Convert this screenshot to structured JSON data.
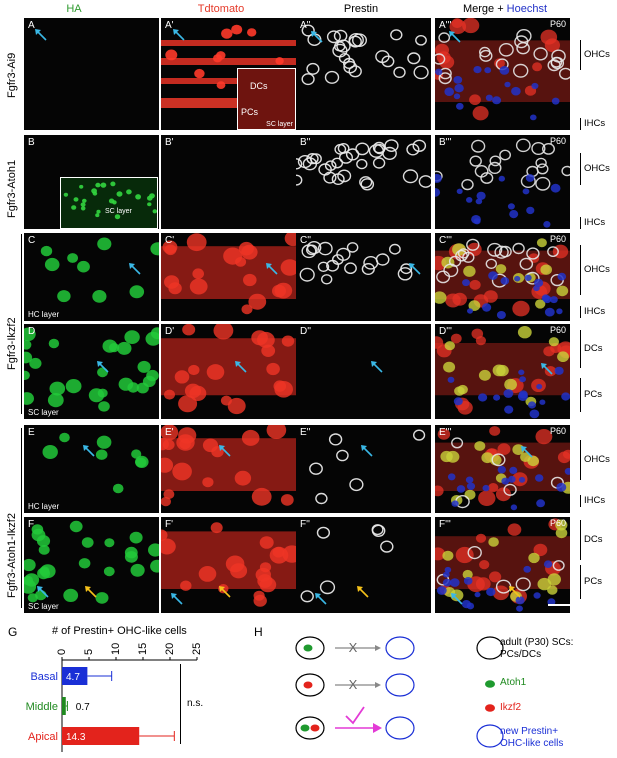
{
  "columns": {
    "ha": "HA",
    "tdtomato": "Tdtomato",
    "prestin": "Prestin",
    "merge": "Merge + ",
    "hoechst": "Hoechst"
  },
  "colors": {
    "ha": "#2e9a2e",
    "tdtomato": "#e53a2a",
    "hoechst": "#2232c8",
    "basal": "#1a2fd6",
    "middle": "#1f8a1f",
    "apical": "#e3231c",
    "arrow_cyan": "#3ab8e6",
    "arrow_yellow": "#f6c21a",
    "check": "#e33ad6"
  },
  "rows": [
    {
      "genotype": "Fgfr3-Ai9",
      "labels": [
        "A",
        "A'",
        "A''",
        "A'''"
      ],
      "p60": "P60",
      "layer": "",
      "inset_labels": [
        "DCs",
        "PCs",
        "SC layer"
      ],
      "right_labels": [
        "OHCs",
        "IHCs"
      ]
    },
    {
      "genotype": "Fgfr3-Atoh1",
      "labels": [
        "B",
        "B'",
        "B''",
        "B'''"
      ],
      "p60": "P60",
      "layer": "",
      "inset_labels": [
        "SC layer"
      ],
      "right_labels": [
        "OHCs",
        "IHCs"
      ]
    },
    {
      "genotype": "Fgfr3-Ikzf2",
      "labels": [
        "C",
        "C'",
        "C''",
        "C'''"
      ],
      "p60": "P60",
      "layer": "HC layer",
      "right_labels": [
        "OHCs",
        "IHCs"
      ]
    },
    {
      "genotype": "",
      "labels": [
        "D",
        "D'",
        "D''",
        "D'''"
      ],
      "p60": "P60",
      "layer": "SC layer",
      "right_labels": [
        "DCs",
        "PCs"
      ]
    },
    {
      "genotype": "Fgfr3-Atoh1-Ikzf2",
      "labels": [
        "E",
        "E'",
        "E''",
        "E'''"
      ],
      "p60": "P60",
      "layer": "HC layer",
      "right_labels": [
        "OHCs",
        "IHCs"
      ]
    },
    {
      "genotype": "",
      "labels": [
        "F",
        "F'",
        "F''",
        "F'''"
      ],
      "p60": "P60",
      "layer": "SC layer",
      "right_labels": [
        "DCs",
        "PCs"
      ]
    }
  ],
  "panel_g": {
    "letter": "G",
    "title": "# of Prestin+ OHC-like cells",
    "sig": "n.s."
  },
  "chart_data": {
    "type": "bar",
    "orientation": "horizontal",
    "categories": [
      "Basal",
      "Middle",
      "Apical"
    ],
    "values": [
      4.7,
      0.7,
      14.3
    ],
    "errors": [
      4.5,
      0.3,
      6.5
    ],
    "value_labels": [
      "4.7",
      "0.7",
      "14.3"
    ],
    "xlim": [
      0,
      25
    ],
    "xticks": [
      "0",
      "5",
      "10",
      "15",
      "20",
      "25"
    ],
    "xtick_values": [
      0,
      5,
      10,
      15,
      20,
      25
    ]
  },
  "panel_h": {
    "letter": "H",
    "legend": {
      "sc_line1": "adult (P30) SCs:",
      "sc_line2": "PCs/DCs",
      "atoh1": "Atoh1",
      "ikzf2": "Ikzf2",
      "new_line1": "new Prestin+",
      "new_line2": "OHC-like cells"
    }
  }
}
